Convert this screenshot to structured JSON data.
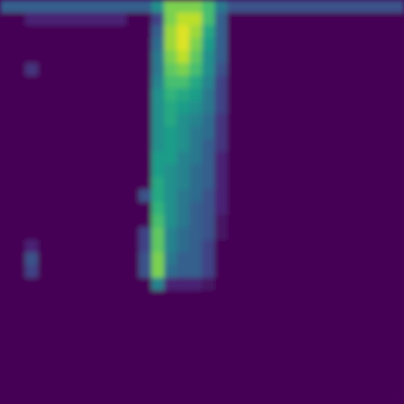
{
  "chart_data": {
    "type": "heatmap",
    "tick_labels": false,
    "color": "viridis",
    "zlim": [
      0,
      1
    ],
    "cells": [
      [
        0.3,
        0.3,
        0.3,
        0.3,
        0.3,
        0.3,
        0.3,
        0.3,
        0.3,
        0.3,
        0.3,
        0.3,
        0.5,
        0.8,
        0.8,
        0.8,
        0.7,
        0.4,
        0.25,
        0.25,
        0.25,
        0.25,
        0.25,
        0.25,
        0.25,
        0.25,
        0.25,
        0.25,
        0.25,
        0.25,
        0.25,
        0.25
      ],
      [
        0,
        0,
        0.1,
        0.1,
        0.1,
        0.1,
        0.1,
        0.1,
        0.1,
        0.1,
        0,
        0,
        0.2,
        0.8,
        0.9,
        0.9,
        0.7,
        0.3,
        0,
        0,
        0,
        0,
        0,
        0,
        0,
        0,
        0,
        0,
        0,
        0,
        0,
        0
      ],
      [
        0,
        0,
        0,
        0,
        0,
        0,
        0,
        0,
        0,
        0,
        0,
        0,
        0.3,
        0.85,
        0.95,
        0.85,
        0.6,
        0.3,
        0,
        0,
        0,
        0,
        0,
        0,
        0,
        0,
        0,
        0,
        0,
        0,
        0,
        0
      ],
      [
        0,
        0,
        0,
        0,
        0,
        0,
        0,
        0,
        0,
        0,
        0,
        0,
        0.35,
        0.85,
        0.95,
        0.8,
        0.55,
        0.3,
        0,
        0,
        0,
        0,
        0,
        0,
        0,
        0,
        0,
        0,
        0,
        0,
        0,
        0
      ],
      [
        0,
        0,
        0,
        0,
        0,
        0,
        0,
        0,
        0,
        0,
        0,
        0,
        0.4,
        0.8,
        0.9,
        0.75,
        0.5,
        0.3,
        0,
        0,
        0,
        0,
        0,
        0,
        0,
        0,
        0,
        0,
        0,
        0,
        0,
        0
      ],
      [
        0,
        0,
        0.15,
        0,
        0,
        0,
        0,
        0,
        0,
        0,
        0,
        0,
        0.4,
        0.75,
        0.8,
        0.7,
        0.5,
        0.25,
        0,
        0,
        0,
        0,
        0,
        0,
        0,
        0,
        0,
        0,
        0,
        0,
        0,
        0
      ],
      [
        0,
        0,
        0,
        0,
        0,
        0,
        0,
        0,
        0,
        0,
        0,
        0,
        0.45,
        0.7,
        0.7,
        0.6,
        0.45,
        0.2,
        0,
        0,
        0,
        0,
        0,
        0,
        0,
        0,
        0,
        0,
        0,
        0,
        0,
        0
      ],
      [
        0,
        0,
        0,
        0,
        0,
        0,
        0,
        0,
        0,
        0,
        0,
        0,
        0.5,
        0.65,
        0.6,
        0.55,
        0.4,
        0.2,
        0,
        0,
        0,
        0,
        0,
        0,
        0,
        0,
        0,
        0,
        0,
        0,
        0,
        0
      ],
      [
        0,
        0,
        0,
        0,
        0,
        0,
        0,
        0,
        0,
        0,
        0,
        0,
        0.5,
        0.6,
        0.55,
        0.5,
        0.4,
        0.2,
        0,
        0,
        0,
        0,
        0,
        0,
        0,
        0,
        0,
        0,
        0,
        0,
        0,
        0
      ],
      [
        0,
        0,
        0,
        0,
        0,
        0,
        0,
        0,
        0,
        0,
        0,
        0,
        0.5,
        0.6,
        0.5,
        0.45,
        0.35,
        0.15,
        0,
        0,
        0,
        0,
        0,
        0,
        0,
        0,
        0,
        0,
        0,
        0,
        0,
        0
      ],
      [
        0,
        0,
        0,
        0,
        0,
        0,
        0,
        0,
        0,
        0,
        0,
        0,
        0.5,
        0.55,
        0.5,
        0.4,
        0.35,
        0.15,
        0,
        0,
        0,
        0,
        0,
        0,
        0,
        0,
        0,
        0,
        0,
        0,
        0,
        0
      ],
      [
        0,
        0,
        0,
        0,
        0,
        0,
        0,
        0,
        0,
        0,
        0,
        0,
        0.5,
        0.55,
        0.5,
        0.4,
        0.3,
        0.15,
        0,
        0,
        0,
        0,
        0,
        0,
        0,
        0,
        0,
        0,
        0,
        0,
        0,
        0
      ],
      [
        0,
        0,
        0,
        0,
        0,
        0,
        0,
        0,
        0,
        0,
        0,
        0,
        0.55,
        0.55,
        0.45,
        0.4,
        0.3,
        0.1,
        0,
        0,
        0,
        0,
        0,
        0,
        0,
        0,
        0,
        0,
        0,
        0,
        0,
        0
      ],
      [
        0,
        0,
        0,
        0,
        0,
        0,
        0,
        0,
        0,
        0,
        0,
        0,
        0.55,
        0.5,
        0.45,
        0.35,
        0.3,
        0.1,
        0,
        0,
        0,
        0,
        0,
        0,
        0,
        0,
        0,
        0,
        0,
        0,
        0,
        0
      ],
      [
        0,
        0,
        0,
        0,
        0,
        0,
        0,
        0,
        0,
        0,
        0,
        0,
        0.6,
        0.5,
        0.45,
        0.35,
        0.3,
        0.1,
        0,
        0,
        0,
        0,
        0,
        0,
        0,
        0,
        0,
        0,
        0,
        0,
        0,
        0
      ],
      [
        0,
        0,
        0,
        0,
        0,
        0,
        0,
        0,
        0,
        0,
        0,
        0.25,
        0.6,
        0.5,
        0.4,
        0.35,
        0.25,
        0.1,
        0,
        0,
        0,
        0,
        0,
        0,
        0,
        0,
        0,
        0,
        0,
        0,
        0,
        0
      ],
      [
        0,
        0,
        0,
        0,
        0,
        0,
        0,
        0,
        0,
        0,
        0,
        0,
        0.65,
        0.5,
        0.4,
        0.3,
        0.25,
        0.1,
        0,
        0,
        0,
        0,
        0,
        0,
        0,
        0,
        0,
        0,
        0,
        0,
        0,
        0
      ],
      [
        0,
        0,
        0,
        0,
        0,
        0,
        0,
        0,
        0,
        0,
        0,
        0,
        0.7,
        0.5,
        0.4,
        0.3,
        0.25,
        0.05,
        0,
        0,
        0,
        0,
        0,
        0,
        0,
        0,
        0,
        0,
        0,
        0,
        0,
        0
      ],
      [
        0,
        0,
        0,
        0,
        0,
        0,
        0,
        0,
        0,
        0,
        0,
        0.2,
        0.75,
        0.45,
        0.35,
        0.3,
        0.25,
        0.05,
        0,
        0,
        0,
        0,
        0,
        0,
        0,
        0,
        0,
        0,
        0,
        0,
        0,
        0
      ],
      [
        0,
        0,
        0.1,
        0,
        0,
        0,
        0,
        0,
        0,
        0,
        0,
        0.2,
        0.75,
        0.45,
        0.35,
        0.3,
        0.2,
        0,
        0,
        0,
        0,
        0,
        0,
        0,
        0,
        0,
        0,
        0,
        0,
        0,
        0,
        0
      ],
      [
        0,
        0,
        0.25,
        0,
        0,
        0,
        0,
        0,
        0,
        0,
        0,
        0.25,
        0.8,
        0.4,
        0.3,
        0.3,
        0.2,
        0,
        0,
        0,
        0,
        0,
        0,
        0,
        0,
        0,
        0,
        0,
        0,
        0,
        0,
        0
      ],
      [
        0,
        0,
        0.2,
        0,
        0,
        0,
        0,
        0,
        0,
        0,
        0,
        0.25,
        0.8,
        0.35,
        0.3,
        0.3,
        0.2,
        0,
        0,
        0,
        0,
        0,
        0,
        0,
        0,
        0,
        0,
        0,
        0,
        0,
        0,
        0
      ],
      [
        0,
        0,
        0,
        0,
        0,
        0,
        0,
        0,
        0,
        0,
        0,
        0,
        0.45,
        0.1,
        0.1,
        0.1,
        0.05,
        0,
        0,
        0,
        0,
        0,
        0,
        0,
        0,
        0,
        0,
        0,
        0,
        0,
        0,
        0
      ],
      [
        0,
        0,
        0,
        0,
        0,
        0,
        0,
        0,
        0,
        0,
        0,
        0,
        0,
        0,
        0,
        0,
        0,
        0,
        0,
        0,
        0,
        0,
        0,
        0,
        0,
        0,
        0,
        0,
        0,
        0,
        0,
        0
      ],
      [
        0,
        0,
        0,
        0,
        0,
        0,
        0,
        0,
        0,
        0,
        0,
        0,
        0,
        0,
        0,
        0,
        0,
        0,
        0,
        0,
        0,
        0,
        0,
        0,
        0,
        0,
        0,
        0,
        0,
        0,
        0,
        0
      ],
      [
        0,
        0,
        0,
        0,
        0,
        0,
        0,
        0,
        0,
        0,
        0,
        0,
        0,
        0,
        0,
        0,
        0,
        0,
        0,
        0,
        0,
        0,
        0,
        0,
        0,
        0,
        0,
        0,
        0,
        0,
        0,
        0
      ],
      [
        0,
        0,
        0,
        0,
        0,
        0,
        0,
        0,
        0,
        0,
        0,
        0,
        0,
        0,
        0,
        0,
        0,
        0,
        0,
        0,
        0,
        0,
        0,
        0,
        0,
        0,
        0,
        0,
        0,
        0,
        0,
        0
      ],
      [
        0,
        0,
        0,
        0,
        0,
        0,
        0,
        0,
        0,
        0,
        0,
        0,
        0,
        0,
        0,
        0,
        0,
        0,
        0,
        0,
        0,
        0,
        0,
        0,
        0,
        0,
        0,
        0,
        0,
        0,
        0,
        0
      ],
      [
        0,
        0,
        0,
        0,
        0,
        0,
        0,
        0,
        0,
        0,
        0,
        0,
        0,
        0,
        0,
        0,
        0,
        0,
        0,
        0,
        0,
        0,
        0,
        0,
        0,
        0,
        0,
        0,
        0,
        0,
        0,
        0
      ],
      [
        0,
        0,
        0,
        0,
        0,
        0,
        0,
        0,
        0,
        0,
        0,
        0,
        0,
        0,
        0,
        0,
        0,
        0,
        0,
        0,
        0,
        0,
        0,
        0,
        0,
        0,
        0,
        0,
        0,
        0,
        0,
        0
      ],
      [
        0,
        0,
        0,
        0,
        0,
        0,
        0,
        0,
        0,
        0,
        0,
        0,
        0,
        0,
        0,
        0,
        0,
        0,
        0,
        0,
        0,
        0,
        0,
        0,
        0,
        0,
        0,
        0,
        0,
        0,
        0,
        0
      ],
      [
        0,
        0,
        0,
        0,
        0,
        0,
        0,
        0,
        0,
        0,
        0,
        0,
        0,
        0,
        0,
        0,
        0,
        0,
        0,
        0,
        0,
        0,
        0,
        0,
        0,
        0,
        0,
        0,
        0,
        0,
        0,
        0
      ]
    ]
  }
}
